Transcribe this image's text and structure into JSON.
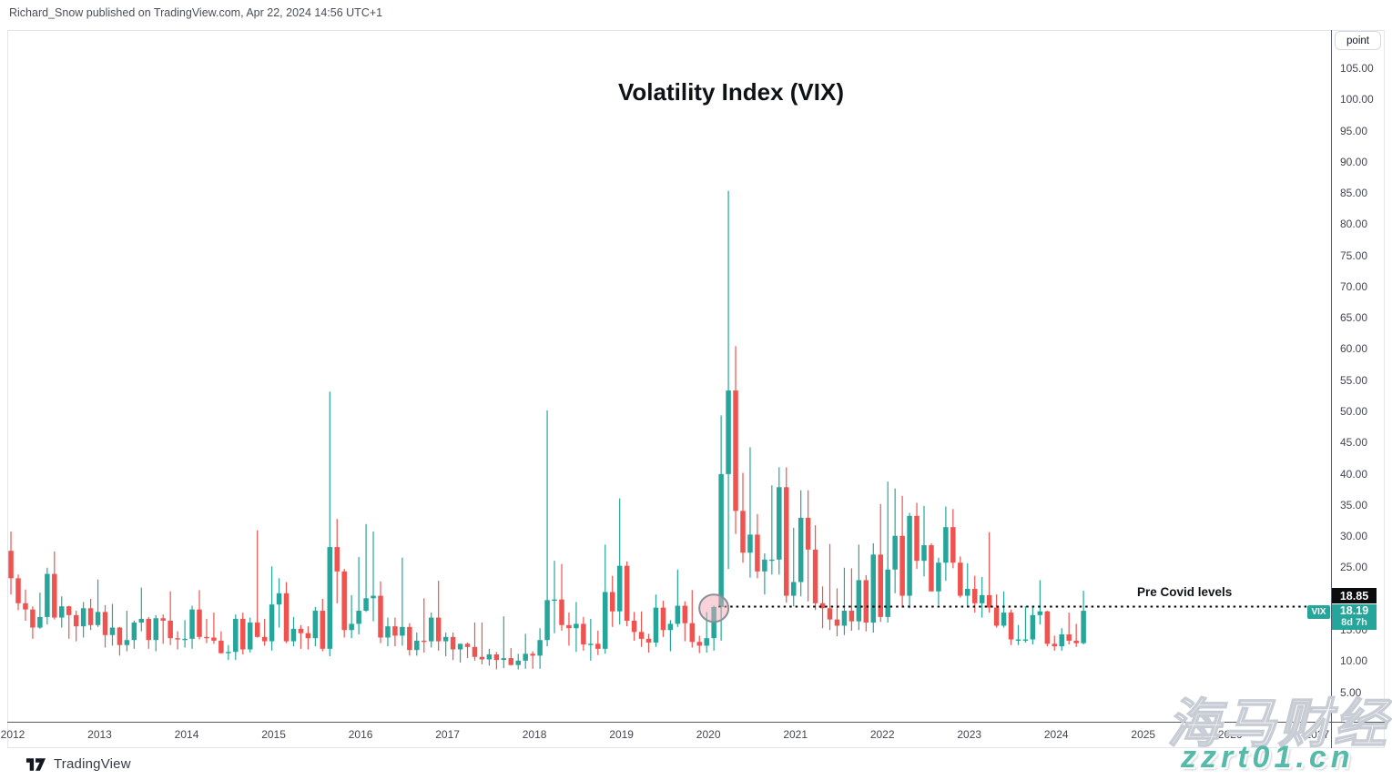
{
  "header": {
    "publish_text": "Richard_Snow published on TradingView.com, Apr 22, 2024 14:56 UTC+1"
  },
  "chart": {
    "title": "Volatility Index (VIX)",
    "symbol": "VIX",
    "unit_button_label": "point",
    "price_line_badge": "18.85",
    "last_price_badge": "18.19",
    "countdown_badge": "8d 7h",
    "annotation_label": "Pre Covid levels",
    "colors": {
      "up": "#26a69a",
      "down": "#ef5350",
      "price_line_badge_bg": "#0b0c0e",
      "last_badge_bg": "#26a69a",
      "circle_fill": "rgba(243,168,179,0.5)",
      "circle_stroke": "#8b8e98"
    }
  },
  "price_axis": {
    "unit": "point",
    "labels": [
      "105.00",
      "100.00",
      "95.00",
      "90.00",
      "85.00",
      "80.00",
      "75.00",
      "70.00",
      "65.00",
      "60.00",
      "55.00",
      "50.00",
      "45.00",
      "40.00",
      "35.00",
      "30.00",
      "25.00",
      "20.00",
      "15.00",
      "10.00",
      "5.00"
    ]
  },
  "time_axis": {
    "labels": [
      "2012",
      "2013",
      "2014",
      "2015",
      "2016",
      "2017",
      "2018",
      "2019",
      "2020",
      "2021",
      "2022",
      "2023",
      "2024",
      "2025",
      "2026",
      "2027"
    ]
  },
  "watermark": {
    "cn": "海马财经",
    "url": "zzrt01.cn"
  },
  "footer": {
    "brand": "TradingView"
  },
  "chart_data": {
    "type": "candlestick",
    "title": "Volatility Index (VIX)",
    "ylabel": "point",
    "ylim": [
      5,
      105
    ],
    "grid": false,
    "interval": "monthly",
    "annotations": {
      "pre_covid_line": {
        "price": 18.85,
        "label": "Pre Covid levels",
        "style": "dotted",
        "from_month": "2020-01"
      },
      "circle_highlight": {
        "month": "2020-01",
        "price": 18.6
      },
      "last_price": 18.19,
      "bar_close_countdown": "8d 7h"
    },
    "candles": [
      [
        "2011-12",
        27.8,
        30.9,
        20.8,
        23.4
      ],
      [
        "2012-01",
        23.4,
        24.0,
        18.3,
        19.4
      ],
      [
        "2012-02",
        19.4,
        21.6,
        16.6,
        18.4
      ],
      [
        "2012-03",
        18.4,
        18.9,
        13.7,
        15.5
      ],
      [
        "2012-04",
        15.5,
        21.1,
        15.3,
        17.2
      ],
      [
        "2012-05",
        17.2,
        25.1,
        16.0,
        24.1
      ],
      [
        "2012-06",
        24.1,
        27.7,
        16.8,
        17.1
      ],
      [
        "2012-07",
        17.1,
        20.5,
        15.5,
        18.9
      ],
      [
        "2012-08",
        18.9,
        19.0,
        13.7,
        17.5
      ],
      [
        "2012-09",
        17.5,
        18.2,
        13.3,
        15.7
      ],
      [
        "2012-10",
        15.7,
        19.6,
        13.9,
        18.6
      ],
      [
        "2012-11",
        18.6,
        20.1,
        15.1,
        15.9
      ],
      [
        "2012-12",
        15.9,
        23.2,
        15.6,
        18.0
      ],
      [
        "2013-01",
        18.0,
        19.1,
        12.3,
        14.3
      ],
      [
        "2013-02",
        14.3,
        19.3,
        12.6,
        15.5
      ],
      [
        "2013-03",
        15.5,
        15.6,
        11.0,
        12.7
      ],
      [
        "2013-04",
        12.7,
        18.2,
        11.7,
        13.5
      ],
      [
        "2013-05",
        13.5,
        16.6,
        12.1,
        16.3
      ],
      [
        "2013-06",
        16.3,
        21.9,
        14.9,
        16.9
      ],
      [
        "2013-07",
        16.9,
        17.2,
        12.1,
        13.5
      ],
      [
        "2013-08",
        13.5,
        17.5,
        11.7,
        17.0
      ],
      [
        "2013-09",
        17.0,
        17.6,
        12.9,
        16.6
      ],
      [
        "2013-10",
        16.6,
        21.3,
        12.7,
        13.8
      ],
      [
        "2013-11",
        13.8,
        14.9,
        12.0,
        13.7
      ],
      [
        "2013-12",
        13.7,
        16.7,
        12.3,
        13.7
      ],
      [
        "2014-01",
        13.7,
        19.0,
        12.1,
        18.4
      ],
      [
        "2014-02",
        18.4,
        21.5,
        13.6,
        14.0
      ],
      [
        "2014-03",
        14.0,
        16.9,
        13.0,
        13.9
      ],
      [
        "2014-04",
        13.9,
        17.9,
        12.9,
        13.4
      ],
      [
        "2014-05",
        13.4,
        14.9,
        11.3,
        11.4
      ],
      [
        "2014-06",
        11.4,
        12.7,
        10.3,
        11.6
      ],
      [
        "2014-07",
        11.6,
        17.6,
        10.3,
        16.9
      ],
      [
        "2014-08",
        16.9,
        17.9,
        11.2,
        12.0
      ],
      [
        "2014-09",
        12.0,
        17.1,
        11.5,
        16.3
      ],
      [
        "2014-10",
        16.3,
        31.1,
        13.9,
        14.0
      ],
      [
        "2014-11",
        14.0,
        16.9,
        12.6,
        13.3
      ],
      [
        "2014-12",
        13.3,
        25.3,
        11.8,
        19.2
      ],
      [
        "2015-01",
        19.2,
        23.4,
        15.5,
        21.0
      ],
      [
        "2015-02",
        21.0,
        22.8,
        13.0,
        13.3
      ],
      [
        "2015-03",
        13.3,
        17.2,
        12.5,
        15.3
      ],
      [
        "2015-04",
        15.3,
        15.9,
        12.1,
        14.6
      ],
      [
        "2015-05",
        14.6,
        15.7,
        12.0,
        13.8
      ],
      [
        "2015-06",
        13.8,
        18.8,
        12.5,
        18.2
      ],
      [
        "2015-07",
        18.2,
        20.1,
        11.7,
        12.1
      ],
      [
        "2015-08",
        12.1,
        53.3,
        10.9,
        28.4
      ],
      [
        "2015-09",
        28.4,
        32.9,
        19.4,
        24.5
      ],
      [
        "2015-10",
        24.5,
        24.9,
        13.9,
        15.1
      ],
      [
        "2015-11",
        15.1,
        20.7,
        13.8,
        16.1
      ],
      [
        "2015-12",
        16.1,
        26.8,
        14.4,
        18.2
      ],
      [
        "2016-01",
        18.2,
        32.1,
        18.0,
        20.2
      ],
      [
        "2016-02",
        20.2,
        30.9,
        16.5,
        20.6
      ],
      [
        "2016-03",
        20.6,
        22.9,
        13.0,
        13.9
      ],
      [
        "2016-04",
        13.9,
        17.1,
        12.5,
        15.7
      ],
      [
        "2016-05",
        15.7,
        17.1,
        12.5,
        14.2
      ],
      [
        "2016-06",
        14.2,
        26.7,
        12.6,
        15.6
      ],
      [
        "2016-07",
        15.6,
        16.2,
        11.0,
        11.9
      ],
      [
        "2016-08",
        11.9,
        14.7,
        11.0,
        13.4
      ],
      [
        "2016-09",
        13.4,
        20.2,
        11.5,
        13.3
      ],
      [
        "2016-10",
        13.3,
        17.9,
        12.3,
        17.1
      ],
      [
        "2016-11",
        17.1,
        23.0,
        11.8,
        13.3
      ],
      [
        "2016-12",
        13.3,
        14.7,
        10.9,
        14.0
      ],
      [
        "2017-01",
        14.0,
        14.7,
        10.3,
        12.0
      ],
      [
        "2017-02",
        12.0,
        12.9,
        9.9,
        12.9
      ],
      [
        "2017-03",
        12.9,
        13.1,
        10.6,
        12.4
      ],
      [
        "2017-04",
        12.4,
        16.3,
        10.2,
        10.8
      ],
      [
        "2017-05",
        10.8,
        16.3,
        9.6,
        10.4
      ],
      [
        "2017-06",
        10.4,
        12.1,
        9.4,
        11.2
      ],
      [
        "2017-07",
        11.2,
        11.6,
        8.8,
        10.3
      ],
      [
        "2017-08",
        10.3,
        17.3,
        9.0,
        10.6
      ],
      [
        "2017-09",
        10.6,
        12.2,
        9.4,
        9.5
      ],
      [
        "2017-10",
        9.5,
        11.3,
        8.8,
        10.2
      ],
      [
        "2017-11",
        10.2,
        14.5,
        8.9,
        11.3
      ],
      [
        "2017-12",
        11.3,
        11.7,
        8.9,
        11.0
      ],
      [
        "2018-01",
        11.0,
        15.4,
        8.9,
        13.5
      ],
      [
        "2018-02",
        13.5,
        50.3,
        12.5,
        19.9
      ],
      [
        "2018-03",
        19.9,
        26.2,
        14.6,
        20.0
      ],
      [
        "2018-04",
        20.0,
        25.7,
        15.0,
        15.9
      ],
      [
        "2018-05",
        15.9,
        17.9,
        12.6,
        15.4
      ],
      [
        "2018-06",
        15.4,
        19.6,
        11.6,
        16.1
      ],
      [
        "2018-07",
        16.1,
        17.2,
        11.8,
        12.8
      ],
      [
        "2018-08",
        12.8,
        16.9,
        10.2,
        12.9
      ],
      [
        "2018-09",
        12.9,
        15.0,
        11.1,
        12.1
      ],
      [
        "2018-10",
        12.1,
        28.8,
        11.3,
        21.2
      ],
      [
        "2018-11",
        21.2,
        23.8,
        15.6,
        18.1
      ],
      [
        "2018-12",
        18.1,
        36.2,
        16.0,
        25.4
      ],
      [
        "2019-01",
        25.4,
        26.1,
        15.7,
        16.6
      ],
      [
        "2019-02",
        16.6,
        18.0,
        13.4,
        14.8
      ],
      [
        "2019-03",
        14.8,
        18.1,
        12.4,
        13.7
      ],
      [
        "2019-04",
        13.7,
        14.5,
        11.5,
        13.1
      ],
      [
        "2019-05",
        13.1,
        20.8,
        12.4,
        18.7
      ],
      [
        "2019-06",
        18.7,
        19.8,
        14.0,
        15.1
      ],
      [
        "2019-07",
        15.1,
        16.7,
        11.7,
        16.1
      ],
      [
        "2019-08",
        16.1,
        24.8,
        15.6,
        19.0
      ],
      [
        "2019-09",
        19.0,
        19.7,
        13.3,
        16.2
      ],
      [
        "2019-10",
        16.2,
        21.5,
        12.3,
        13.2
      ],
      [
        "2019-11",
        13.2,
        14.2,
        11.4,
        12.6
      ],
      [
        "2019-12",
        12.6,
        18.0,
        11.5,
        13.8
      ],
      [
        "2020-01",
        13.8,
        19.0,
        11.8,
        18.8
      ],
      [
        "2020-02",
        18.8,
        49.5,
        13.4,
        40.1
      ],
      [
        "2020-03",
        40.1,
        85.5,
        24.9,
        53.5
      ],
      [
        "2020-04",
        53.5,
        60.6,
        30.5,
        34.2
      ],
      [
        "2020-05",
        34.2,
        40.3,
        25.9,
        27.5
      ],
      [
        "2020-06",
        27.5,
        44.4,
        23.5,
        30.4
      ],
      [
        "2020-07",
        30.4,
        33.7,
        23.4,
        24.5
      ],
      [
        "2020-08",
        24.5,
        27.4,
        20.8,
        26.4
      ],
      [
        "2020-09",
        26.4,
        38.3,
        24.0,
        26.4
      ],
      [
        "2020-10",
        26.4,
        41.2,
        24.0,
        38.0
      ],
      [
        "2020-11",
        38.0,
        41.2,
        19.5,
        20.6
      ],
      [
        "2020-12",
        20.6,
        31.5,
        18.9,
        22.8
      ],
      [
        "2021-01",
        22.8,
        37.5,
        20.5,
        33.1
      ],
      [
        "2021-02",
        33.1,
        37.5,
        19.7,
        28.0
      ],
      [
        "2021-03",
        28.0,
        31.9,
        18.3,
        19.4
      ],
      [
        "2021-04",
        19.4,
        22.1,
        15.4,
        18.6
      ],
      [
        "2021-05",
        18.6,
        28.9,
        15.1,
        16.8
      ],
      [
        "2021-06",
        16.8,
        21.8,
        14.1,
        15.8
      ],
      [
        "2021-07",
        15.8,
        25.1,
        14.3,
        18.2
      ],
      [
        "2021-08",
        18.2,
        25.0,
        15.0,
        16.5
      ],
      [
        "2021-09",
        16.5,
        28.8,
        15.1,
        23.1
      ],
      [
        "2021-10",
        23.1,
        23.9,
        14.9,
        16.3
      ],
      [
        "2021-11",
        16.3,
        29.0,
        14.7,
        27.2
      ],
      [
        "2021-12",
        27.2,
        35.3,
        16.4,
        17.2
      ],
      [
        "2022-01",
        17.2,
        38.9,
        16.3,
        24.8
      ],
      [
        "2022-02",
        24.8,
        37.8,
        21.0,
        30.2
      ],
      [
        "2022-03",
        30.2,
        36.6,
        18.7,
        20.6
      ],
      [
        "2022-04",
        20.6,
        33.9,
        18.6,
        33.4
      ],
      [
        "2022-05",
        33.4,
        35.5,
        24.9,
        26.2
      ],
      [
        "2022-06",
        26.2,
        35.0,
        23.7,
        28.7
      ],
      [
        "2022-07",
        28.7,
        29.0,
        21.3,
        21.3
      ],
      [
        "2022-08",
        21.3,
        26.7,
        19.1,
        25.9
      ],
      [
        "2022-09",
        25.9,
        34.9,
        23.0,
        31.6
      ],
      [
        "2022-10",
        31.6,
        34.5,
        25.0,
        25.9
      ],
      [
        "2022-11",
        25.9,
        26.9,
        20.3,
        20.6
      ],
      [
        "2022-12",
        20.6,
        25.8,
        18.9,
        21.7
      ],
      [
        "2023-01",
        21.7,
        23.8,
        17.9,
        19.4
      ],
      [
        "2023-02",
        19.4,
        23.6,
        17.1,
        20.7
      ],
      [
        "2023-03",
        20.7,
        30.8,
        17.9,
        18.7
      ],
      [
        "2023-04",
        18.7,
        20.8,
        15.5,
        15.8
      ],
      [
        "2023-05",
        15.8,
        21.3,
        15.5,
        17.9
      ],
      [
        "2023-06",
        17.9,
        18.4,
        12.7,
        13.6
      ],
      [
        "2023-07",
        13.6,
        15.9,
        12.7,
        13.6
      ],
      [
        "2023-08",
        13.6,
        18.9,
        13.1,
        13.6
      ],
      [
        "2023-09",
        13.6,
        19.0,
        12.8,
        17.5
      ],
      [
        "2023-10",
        17.5,
        23.1,
        16.0,
        18.1
      ],
      [
        "2023-11",
        18.1,
        18.2,
        12.5,
        12.9
      ],
      [
        "2023-12",
        12.9,
        14.2,
        11.8,
        12.5
      ],
      [
        "2024-01",
        12.5,
        15.4,
        11.8,
        14.4
      ],
      [
        "2024-02",
        14.4,
        17.9,
        12.8,
        13.4
      ],
      [
        "2024-03",
        13.4,
        16.1,
        12.4,
        13.0
      ],
      [
        "2024-04",
        13.0,
        21.4,
        12.8,
        18.19
      ]
    ]
  }
}
